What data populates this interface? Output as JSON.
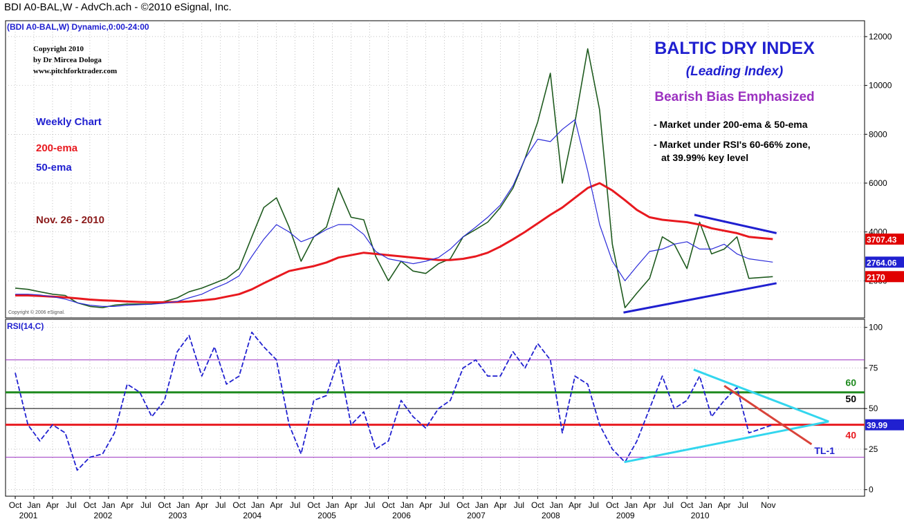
{
  "chart_data": [
    {
      "type": "line",
      "title": "BDI A0-BAL,W - AdvCh.ach - ©2010 eSignal, Inc.",
      "subtitle": "(BDI A0-BAL,W) Dynamic,0:00-24:00",
      "annotations": {
        "copyright": [
          "Copyright 2010",
          "by Dr Mircea Dologa",
          "www.pitchforktrader.com"
        ],
        "watermark": "Copyright © 2006 eSignal.",
        "notes": [
          "Weekly Chart",
          "Nov. 26 - 2010"
        ],
        "headline": "BALTIC DRY INDEX",
        "subheadline": "(Leading Index)",
        "bias": "Bearish Bias Emphasized",
        "bullets": [
          "- Market under 200-ema & 50-ema",
          "- Market under RSI's 60-66% zone,",
          "at 39.99% key level"
        ]
      },
      "x": [
        2000.75,
        2000.92,
        2001.08,
        2001.25,
        2001.42,
        2001.58,
        2001.75,
        2001.92,
        2002.08,
        2002.25,
        2002.42,
        2002.58,
        2002.75,
        2002.92,
        2003.08,
        2003.25,
        2003.42,
        2003.58,
        2003.75,
        2003.92,
        2004.08,
        2004.25,
        2004.42,
        2004.58,
        2004.75,
        2004.92,
        2005.08,
        2005.25,
        2005.42,
        2005.58,
        2005.75,
        2005.92,
        2006.08,
        2006.25,
        2006.42,
        2006.58,
        2006.75,
        2006.92,
        2007.08,
        2007.25,
        2007.42,
        2007.58,
        2007.75,
        2007.92,
        2008.08,
        2008.25,
        2008.42,
        2008.58,
        2008.75,
        2008.92,
        2009.08,
        2009.25,
        2009.42,
        2009.58,
        2009.75,
        2009.92,
        2010.08,
        2010.25,
        2010.42,
        2010.58,
        2010.9
      ],
      "series": [
        {
          "color": "#1e5a1e",
          "width": 1.6,
          "dashed": false,
          "last_value_box": "#e00000",
          "values": [
            1700,
            1650,
            1550,
            1450,
            1400,
            1100,
            950,
            900,
            1000,
            1050,
            1050,
            1050,
            1150,
            1300,
            1550,
            1700,
            1900,
            2100,
            2500,
            3800,
            5000,
            5400,
            4200,
            2800,
            3800,
            4200,
            5800,
            4600,
            4500,
            3000,
            2000,
            2800,
            2400,
            2300,
            2700,
            2900,
            3800,
            4100,
            4400,
            5000,
            5800,
            7000,
            8500,
            10500,
            6000,
            8500,
            11500,
            9000,
            3500,
            900,
            1500,
            2100,
            3800,
            3500,
            2500,
            4400,
            3100,
            3300,
            3800,
            2100,
            2170
          ]
        },
        {
          "name": "200-ema",
          "color": "#e8191f",
          "width": 3,
          "dashed": false,
          "last_value_box": "#e00000",
          "values": [
            1400,
            1400,
            1380,
            1350,
            1320,
            1280,
            1230,
            1200,
            1180,
            1150,
            1130,
            1120,
            1120,
            1130,
            1150,
            1200,
            1250,
            1350,
            1450,
            1650,
            1900,
            2150,
            2400,
            2500,
            2600,
            2750,
            2950,
            3050,
            3150,
            3100,
            3050,
            3000,
            2950,
            2900,
            2850,
            2850,
            2900,
            3000,
            3150,
            3400,
            3700,
            4000,
            4350,
            4700,
            5000,
            5400,
            5800,
            6000,
            5700,
            5300,
            4900,
            4600,
            4500,
            4450,
            4400,
            4300,
            4150,
            4050,
            3950,
            3800,
            3707.43
          ]
        },
        {
          "name": "50-ema",
          "color": "#2b2bd9",
          "width": 1.2,
          "dashed": false,
          "last_value_box": "#2020d0",
          "values": [
            1450,
            1450,
            1420,
            1350,
            1250,
            1100,
            1000,
            950,
            950,
            1000,
            1020,
            1040,
            1080,
            1150,
            1300,
            1450,
            1700,
            1900,
            2200,
            3000,
            3700,
            4300,
            4000,
            3600,
            3800,
            4100,
            4300,
            4300,
            3900,
            3200,
            2900,
            2800,
            2700,
            2800,
            2950,
            3300,
            3800,
            4200,
            4600,
            5100,
            5900,
            7000,
            7800,
            7700,
            8200,
            8600,
            6500,
            4300,
            2800,
            2000,
            2600,
            3200,
            3300,
            3500,
            3600,
            3300,
            3300,
            3500,
            3100,
            2900,
            2764.06
          ]
        }
      ],
      "trendlines": [
        {
          "color": "#2020d0",
          "points": [
            [
              2009.85,
              4700
            ],
            [
              2010.95,
              3950
            ]
          ]
        },
        {
          "color": "#2020d0",
          "points": [
            [
              2008.9,
              700
            ],
            [
              2010.95,
              1900
            ]
          ]
        }
      ],
      "xlim": [
        2000.62,
        2012.13
      ],
      "ylim": [
        480,
        12650
      ],
      "yticks": [
        2000,
        4000,
        6000,
        8000,
        10000,
        12000
      ],
      "grid": true
    },
    {
      "type": "line",
      "x": [
        2000.75,
        2000.92,
        2001.08,
        2001.25,
        2001.42,
        2001.58,
        2001.75,
        2001.92,
        2002.08,
        2002.25,
        2002.42,
        2002.58,
        2002.75,
        2002.92,
        2003.08,
        2003.25,
        2003.42,
        2003.58,
        2003.75,
        2003.92,
        2004.08,
        2004.25,
        2004.42,
        2004.58,
        2004.75,
        2004.92,
        2005.08,
        2005.25,
        2005.42,
        2005.58,
        2005.75,
        2005.92,
        2006.08,
        2006.25,
        2006.42,
        2006.58,
        2006.75,
        2006.92,
        2007.08,
        2007.25,
        2007.42,
        2007.58,
        2007.75,
        2007.92,
        2008.08,
        2008.25,
        2008.42,
        2008.58,
        2008.75,
        2008.92,
        2009.08,
        2009.25,
        2009.42,
        2009.58,
        2009.75,
        2009.92,
        2010.08,
        2010.25,
        2010.42,
        2010.58,
        2010.9
      ],
      "series": [
        {
          "name": "RSI(14,C)",
          "color": "#2020d0",
          "width": 1.8,
          "dashed": true,
          "last_value_box": "#2020d0",
          "values": [
            72,
            40,
            30,
            40,
            35,
            12,
            20,
            22,
            35,
            65,
            60,
            45,
            55,
            85,
            95,
            70,
            88,
            65,
            70,
            97,
            88,
            80,
            40,
            22,
            55,
            58,
            80,
            40,
            48,
            25,
            30,
            55,
            45,
            38,
            50,
            55,
            75,
            80,
            70,
            70,
            85,
            75,
            90,
            80,
            35,
            70,
            65,
            40,
            25,
            17,
            30,
            50,
            70,
            50,
            55,
            70,
            45,
            55,
            63,
            35,
            39.99
          ]
        }
      ],
      "levels": [
        {
          "value": 80,
          "color": "#9b30c0",
          "width": 1,
          "show_label": false
        },
        {
          "value": 60,
          "color": "#1e8a1e",
          "width": 3,
          "show_label": true
        },
        {
          "value": 50,
          "color": "#000000",
          "width": 1,
          "show_label": true
        },
        {
          "value": 40,
          "color": "#e8191f",
          "width": 3,
          "show_label": true
        },
        {
          "value": 20,
          "color": "#9b30c0",
          "width": 1,
          "show_label": false
        }
      ],
      "trendlines": [
        {
          "color": "#33d6ee",
          "points": [
            [
              2009.84,
              74
            ],
            [
              2011.65,
              42
            ]
          ],
          "label": null
        },
        {
          "color": "#33d6ee",
          "points": [
            [
              2008.91,
              17
            ],
            [
              2011.65,
              42
            ]
          ],
          "label": null
        },
        {
          "color": "#d9433a",
          "points": [
            [
              2010.25,
              64
            ],
            [
              2011.42,
              28
            ]
          ],
          "label": "TL-1"
        }
      ],
      "xlim": [
        2000.62,
        2012.13
      ],
      "ylim": [
        -4,
        105
      ],
      "yticks": [
        0,
        25,
        50,
        75,
        100
      ],
      "xticks": [
        {
          "value": 2000.75,
          "label": "Oct"
        },
        {
          "value": 2001.0,
          "label": "Jan"
        },
        {
          "value": 2001.25,
          "label": "Apr"
        },
        {
          "value": 2001.5,
          "label": "Jul"
        },
        {
          "value": 2001.75,
          "label": "Oct"
        },
        {
          "value": 2002.0,
          "label": "Jan"
        },
        {
          "value": 2002.25,
          "label": "Apr"
        },
        {
          "value": 2002.5,
          "label": "Jul"
        },
        {
          "value": 2002.75,
          "label": "Oct"
        },
        {
          "value": 2003.0,
          "label": "Jan"
        },
        {
          "value": 2003.25,
          "label": "Apr"
        },
        {
          "value": 2003.5,
          "label": "Jul"
        },
        {
          "value": 2003.75,
          "label": "Oct"
        },
        {
          "value": 2004.0,
          "label": "Jan"
        },
        {
          "value": 2004.25,
          "label": "Apr"
        },
        {
          "value": 2004.5,
          "label": "Jul"
        },
        {
          "value": 2004.75,
          "label": "Oct"
        },
        {
          "value": 2005.0,
          "label": "Jan"
        },
        {
          "value": 2005.25,
          "label": "Apr"
        },
        {
          "value": 2005.5,
          "label": "Jul"
        },
        {
          "value": 2005.75,
          "label": "Oct"
        },
        {
          "value": 2006.0,
          "label": "Jan"
        },
        {
          "value": 2006.25,
          "label": "Apr"
        },
        {
          "value": 2006.5,
          "label": "Jul"
        },
        {
          "value": 2006.75,
          "label": "Oct"
        },
        {
          "value": 2007.0,
          "label": "Jan"
        },
        {
          "value": 2007.25,
          "label": "Apr"
        },
        {
          "value": 2007.5,
          "label": "Jul"
        },
        {
          "value": 2007.75,
          "label": "Oct"
        },
        {
          "value": 2008.0,
          "label": "Jan"
        },
        {
          "value": 2008.25,
          "label": "Apr"
        },
        {
          "value": 2008.5,
          "label": "Jul"
        },
        {
          "value": 2008.75,
          "label": "Oct"
        },
        {
          "value": 2009.0,
          "label": "Jan"
        },
        {
          "value": 2009.25,
          "label": "Apr"
        },
        {
          "value": 2009.5,
          "label": "Jul"
        },
        {
          "value": 2009.75,
          "label": "Oct"
        },
        {
          "value": 2010.0,
          "label": "Jan"
        },
        {
          "value": 2010.25,
          "label": "Apr"
        },
        {
          "value": 2010.5,
          "label": "Jul"
        },
        {
          "value": 2010.84,
          "label": "Nov"
        }
      ],
      "year_ticks": [
        2001,
        2002,
        2003,
        2004,
        2005,
        2006,
        2007,
        2008,
        2009,
        2010
      ],
      "grid": true
    }
  ]
}
